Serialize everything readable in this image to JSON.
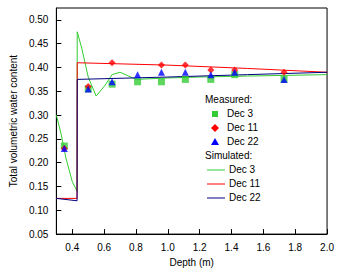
{
  "chart_data": {
    "type": "line",
    "x_label": "Depth (m)",
    "y_label": "Total volumetric water content",
    "annotations": [
      "Measured:",
      "Simulated:"
    ],
    "xlim": [
      0.3,
      2.0
    ],
    "xticks": [
      {
        "value": 0.4,
        "label": "0.4"
      },
      {
        "value": 0.6,
        "label": "0.6"
      },
      {
        "value": 0.8,
        "label": "0.8"
      },
      {
        "value": 1.0,
        "label": "1.0"
      },
      {
        "value": 1.2,
        "label": "1.2"
      },
      {
        "value": 1.4,
        "label": "1.4"
      },
      {
        "value": 1.6,
        "label": "1.6"
      },
      {
        "value": 1.8,
        "label": "1.8"
      },
      {
        "value": 2.0,
        "label": "2.0"
      }
    ],
    "ylim": [
      0.05,
      0.525
    ],
    "yticks": [
      {
        "value": 0.05,
        "label": "0.05"
      },
      {
        "value": 0.1,
        "label": "0.10"
      },
      {
        "value": 0.15,
        "label": "0.15"
      },
      {
        "value": 0.2,
        "label": "0.20"
      },
      {
        "value": 0.25,
        "label": "0.25"
      },
      {
        "value": 0.3,
        "label": "0.30"
      },
      {
        "value": 0.35,
        "label": "0.35"
      },
      {
        "value": 0.4,
        "label": "0.40"
      },
      {
        "value": 0.45,
        "label": "0.45"
      },
      {
        "value": 0.5,
        "label": "0.50"
      }
    ],
    "grid": false,
    "legend": "right",
    "series": [
      {
        "name": "Dec 3",
        "type": "scatter",
        "marker": "square",
        "color": "#33cc33",
        "x": [
          0.35,
          0.5,
          0.65,
          0.81,
          0.96,
          1.11,
          1.27,
          1.42,
          1.73
        ],
        "values": [
          0.235,
          0.355,
          0.365,
          0.37,
          0.37,
          0.375,
          0.375,
          0.385,
          0.375
        ]
      },
      {
        "name": "Dec 11",
        "type": "scatter",
        "marker": "diamond",
        "color": "#ff0000",
        "x": [
          0.35,
          0.5,
          0.65,
          0.96,
          1.11,
          1.27,
          1.42,
          1.73
        ],
        "values": [
          0.23,
          0.36,
          0.41,
          0.405,
          0.405,
          0.395,
          0.395,
          0.39
        ]
      },
      {
        "name": "Dec 22",
        "type": "scatter",
        "marker": "triangle",
        "color": "#0000ff",
        "x": [
          0.35,
          0.5,
          0.65,
          0.81,
          0.96,
          1.11,
          1.27,
          1.42,
          1.73
        ],
        "values": [
          0.23,
          0.355,
          0.37,
          0.385,
          0.39,
          0.39,
          0.385,
          0.39,
          0.375
        ]
      },
      {
        "name": "Dec 3",
        "type": "line",
        "line_style": "solid",
        "color": "#33cc33",
        "x": [
          0.3,
          0.33,
          0.36,
          0.4,
          0.43,
          0.431,
          0.46,
          0.5,
          0.55,
          0.6,
          0.65,
          0.7,
          0.8,
          1.0,
          1.2,
          1.5,
          2.0
        ],
        "values": [
          0.3,
          0.26,
          0.21,
          0.16,
          0.14,
          0.475,
          0.44,
          0.38,
          0.34,
          0.36,
          0.385,
          0.39,
          0.375,
          0.378,
          0.38,
          0.382,
          0.385
        ]
      },
      {
        "name": "Dec 11",
        "type": "line",
        "line_style": "solid",
        "color": "#ff0000",
        "x": [
          0.3,
          0.43,
          0.431,
          1.0,
          1.5,
          2.0
        ],
        "values": [
          0.125,
          0.125,
          0.41,
          0.405,
          0.398,
          0.39
        ]
      },
      {
        "name": "Dec 22",
        "type": "line",
        "line_style": "solid",
        "color": "#000080",
        "x": [
          0.3,
          0.43,
          0.431,
          1.0,
          1.5,
          2.0
        ],
        "values": [
          0.125,
          0.12,
          0.375,
          0.38,
          0.385,
          0.39
        ]
      }
    ]
  }
}
